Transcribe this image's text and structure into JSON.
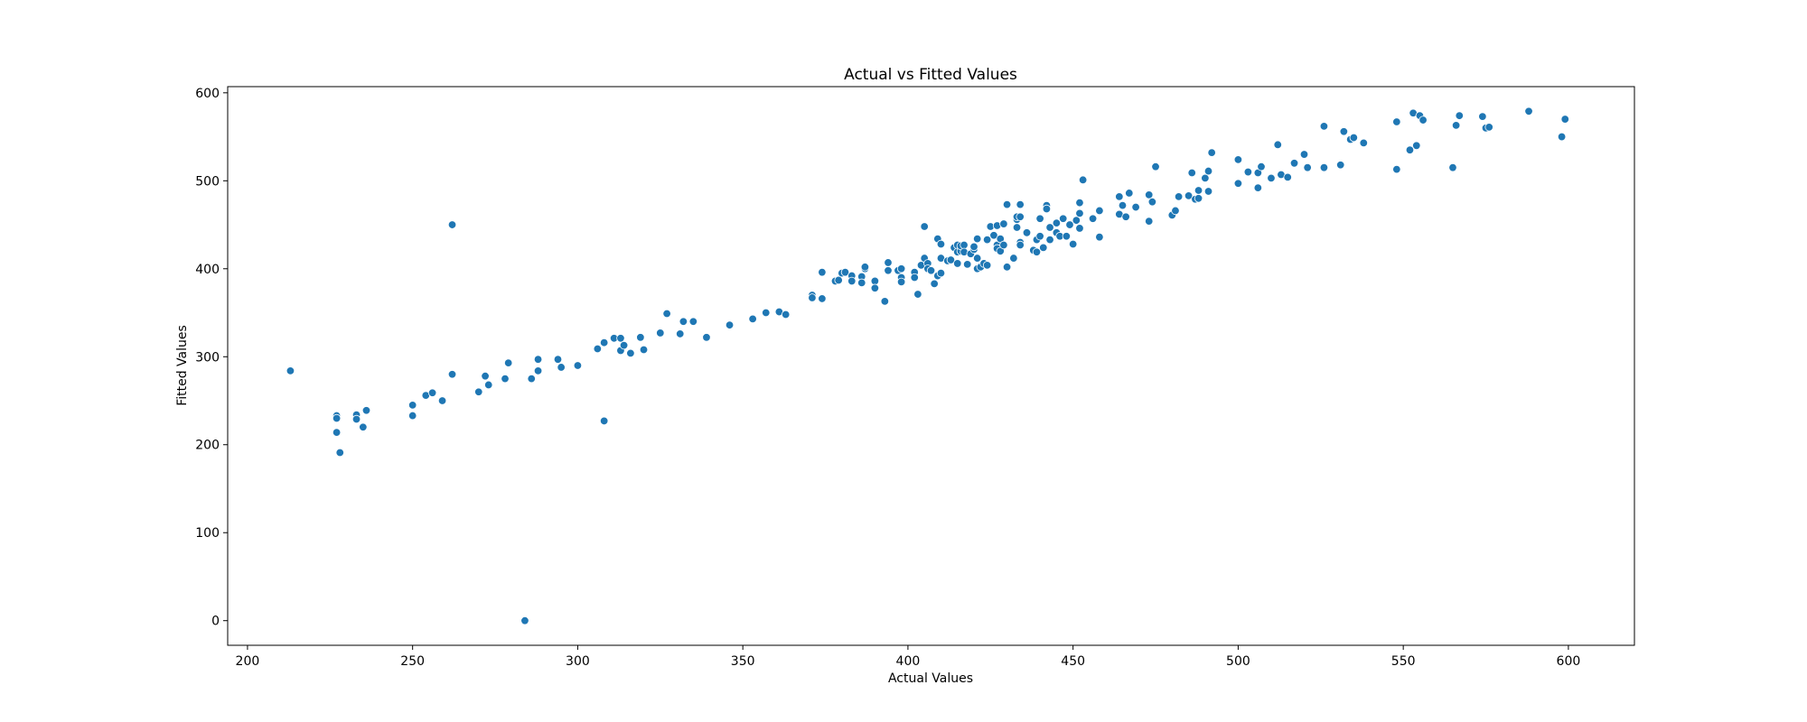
{
  "chart_data": {
    "type": "scatter",
    "title": "Actual vs Fitted Values",
    "xlabel": "Actual Values",
    "ylabel": "Fitted Values",
    "xlim": [
      194,
      620
    ],
    "ylim": [
      -28,
      607
    ],
    "xticks": [
      200,
      250,
      300,
      350,
      400,
      450,
      500,
      550,
      600
    ],
    "yticks": [
      0,
      100,
      200,
      300,
      400,
      500,
      600
    ],
    "grid": false,
    "marker_color": "#1f77b4",
    "marker_edge_color": "#ffffff",
    "series": [
      {
        "points": [
          [
            213,
            284
          ],
          [
            227,
            233
          ],
          [
            227,
            230
          ],
          [
            227,
            214
          ],
          [
            228,
            191
          ],
          [
            233,
            234
          ],
          [
            233,
            229
          ],
          [
            235,
            220
          ],
          [
            236,
            239
          ],
          [
            250,
            245
          ],
          [
            250,
            233
          ],
          [
            254,
            256
          ],
          [
            256,
            259
          ],
          [
            259,
            250
          ],
          [
            262,
            280
          ],
          [
            262,
            450
          ],
          [
            270,
            260
          ],
          [
            272,
            278
          ],
          [
            273,
            268
          ],
          [
            278,
            275
          ],
          [
            279,
            293
          ],
          [
            284,
            0
          ],
          [
            286,
            275
          ],
          [
            288,
            284
          ],
          [
            288,
            297
          ],
          [
            294,
            297
          ],
          [
            295,
            288
          ],
          [
            300,
            290
          ],
          [
            306,
            309
          ],
          [
            308,
            316
          ],
          [
            308,
            227
          ],
          [
            311,
            321
          ],
          [
            313,
            307
          ],
          [
            313,
            321
          ],
          [
            314,
            313
          ],
          [
            316,
            304
          ],
          [
            319,
            322
          ],
          [
            320,
            308
          ],
          [
            325,
            327
          ],
          [
            327,
            349
          ],
          [
            331,
            326
          ],
          [
            332,
            340
          ],
          [
            335,
            340
          ],
          [
            339,
            322
          ],
          [
            346,
            336
          ],
          [
            353,
            343
          ],
          [
            357,
            350
          ],
          [
            361,
            351
          ],
          [
            363,
            348
          ],
          [
            371,
            370
          ],
          [
            371,
            367
          ],
          [
            374,
            396
          ],
          [
            374,
            366
          ],
          [
            378,
            386
          ],
          [
            379,
            387
          ],
          [
            380,
            395
          ],
          [
            381,
            396
          ],
          [
            383,
            392
          ],
          [
            383,
            386
          ],
          [
            386,
            391
          ],
          [
            386,
            384
          ],
          [
            387,
            400
          ],
          [
            387,
            402
          ],
          [
            390,
            386
          ],
          [
            390,
            378
          ],
          [
            393,
            363
          ],
          [
            394,
            398
          ],
          [
            394,
            407
          ],
          [
            397,
            398
          ],
          [
            398,
            390
          ],
          [
            398,
            385
          ],
          [
            398,
            400
          ],
          [
            402,
            396
          ],
          [
            402,
            390
          ],
          [
            403,
            371
          ],
          [
            404,
            404
          ],
          [
            405,
            412
          ],
          [
            405,
            448
          ],
          [
            406,
            406
          ],
          [
            406,
            400
          ],
          [
            407,
            398
          ],
          [
            408,
            383
          ],
          [
            409,
            392
          ],
          [
            409,
            434
          ],
          [
            410,
            412
          ],
          [
            410,
            395
          ],
          [
            410,
            428
          ],
          [
            412,
            409
          ],
          [
            413,
            410
          ],
          [
            414,
            424
          ],
          [
            415,
            427
          ],
          [
            415,
            419
          ],
          [
            415,
            406
          ],
          [
            416,
            420
          ],
          [
            416,
            426
          ],
          [
            417,
            427
          ],
          [
            417,
            419
          ],
          [
            418,
            405
          ],
          [
            419,
            417
          ],
          [
            420,
            422
          ],
          [
            420,
            425
          ],
          [
            421,
            412
          ],
          [
            421,
            434
          ],
          [
            421,
            400
          ],
          [
            422,
            402
          ],
          [
            423,
            406
          ],
          [
            424,
            433
          ],
          [
            424,
            404
          ],
          [
            425,
            448
          ],
          [
            426,
            438
          ],
          [
            427,
            427
          ],
          [
            427,
            423
          ],
          [
            427,
            449
          ],
          [
            428,
            434
          ],
          [
            428,
            420
          ],
          [
            429,
            427
          ],
          [
            429,
            451
          ],
          [
            430,
            402
          ],
          [
            430,
            473
          ],
          [
            432,
            412
          ],
          [
            433,
            447
          ],
          [
            433,
            456
          ],
          [
            433,
            459
          ],
          [
            434,
            430
          ],
          [
            434,
            473
          ],
          [
            434,
            427
          ],
          [
            434,
            459
          ],
          [
            436,
            441
          ],
          [
            438,
            421
          ],
          [
            439,
            419
          ],
          [
            439,
            433
          ],
          [
            440,
            437
          ],
          [
            440,
            457
          ],
          [
            441,
            424
          ],
          [
            442,
            472
          ],
          [
            442,
            468
          ],
          [
            443,
            447
          ],
          [
            443,
            433
          ],
          [
            445,
            441
          ],
          [
            445,
            452
          ],
          [
            446,
            437
          ],
          [
            447,
            457
          ],
          [
            448,
            437
          ],
          [
            449,
            450
          ],
          [
            450,
            428
          ],
          [
            451,
            455
          ],
          [
            452,
            463
          ],
          [
            452,
            475
          ],
          [
            452,
            446
          ],
          [
            453,
            501
          ],
          [
            456,
            457
          ],
          [
            458,
            436
          ],
          [
            458,
            466
          ],
          [
            464,
            462
          ],
          [
            464,
            482
          ],
          [
            465,
            472
          ],
          [
            466,
            459
          ],
          [
            467,
            486
          ],
          [
            469,
            470
          ],
          [
            473,
            454
          ],
          [
            473,
            484
          ],
          [
            474,
            476
          ],
          [
            475,
            516
          ],
          [
            480,
            461
          ],
          [
            481,
            466
          ],
          [
            482,
            482
          ],
          [
            485,
            483
          ],
          [
            486,
            509
          ],
          [
            487,
            479
          ],
          [
            488,
            480
          ],
          [
            488,
            489
          ],
          [
            490,
            503
          ],
          [
            491,
            488
          ],
          [
            491,
            511
          ],
          [
            492,
            532
          ],
          [
            500,
            524
          ],
          [
            500,
            497
          ],
          [
            503,
            510
          ],
          [
            506,
            492
          ],
          [
            506,
            509
          ],
          [
            507,
            516
          ],
          [
            510,
            503
          ],
          [
            512,
            541
          ],
          [
            513,
            507
          ],
          [
            515,
            504
          ],
          [
            517,
            520
          ],
          [
            520,
            530
          ],
          [
            521,
            515
          ],
          [
            526,
            562
          ],
          [
            526,
            515
          ],
          [
            531,
            518
          ],
          [
            532,
            556
          ],
          [
            534,
            547
          ],
          [
            535,
            549
          ],
          [
            538,
            543
          ],
          [
            548,
            567
          ],
          [
            548,
            513
          ],
          [
            552,
            535
          ],
          [
            553,
            577
          ],
          [
            554,
            540
          ],
          [
            555,
            574
          ],
          [
            556,
            569
          ],
          [
            565,
            515
          ],
          [
            566,
            563
          ],
          [
            567,
            574
          ],
          [
            574,
            573
          ],
          [
            575,
            560
          ],
          [
            576,
            561
          ],
          [
            588,
            579
          ],
          [
            598,
            550
          ],
          [
            599,
            570
          ]
        ]
      }
    ]
  }
}
